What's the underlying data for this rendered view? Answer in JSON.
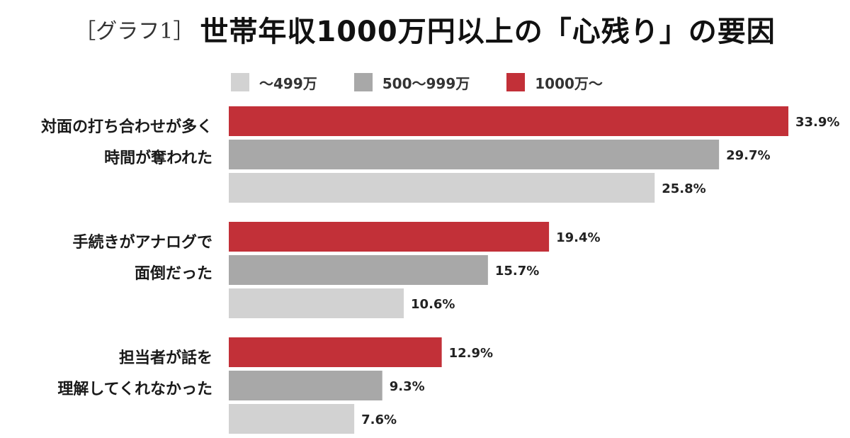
{
  "title": {
    "prefix": "［グラフ1］",
    "main": "世帯年収1000万円以上の「心残り」の要因"
  },
  "colors": {
    "series_low": "#d2d2d2",
    "series_mid": "#a8a8a8",
    "series_high": "#c23038"
  },
  "chart_data": {
    "type": "bar",
    "orientation": "horizontal",
    "title": "［グラフ1］世帯年収1000万円以上の「心残り」の要因",
    "legend_position": "top",
    "grid": false,
    "xlim": [
      0,
      34.5
    ],
    "categories": [
      [
        "対面の打ち合わせが多く",
        "時間が奪われた"
      ],
      [
        "手続きがアナログで",
        "面倒だった"
      ],
      [
        "担当者が話を",
        "理解してくれなかった"
      ]
    ],
    "series": [
      {
        "name": "1000万〜",
        "color": "#c23038",
        "values": [
          33.9,
          19.4,
          12.9
        ],
        "labels": [
          "33.9%",
          "19.4%",
          "12.9%"
        ]
      },
      {
        "name": "500〜999万",
        "color": "#a8a8a8",
        "values": [
          29.7,
          15.7,
          9.3
        ],
        "labels": [
          "29.7%",
          "15.7%",
          "9.3%"
        ]
      },
      {
        "name": "〜499万",
        "color": "#d2d2d2",
        "values": [
          25.8,
          10.6,
          7.6
        ],
        "labels": [
          "25.8%",
          "10.6%",
          "7.6%"
        ]
      }
    ]
  },
  "legend": [
    {
      "label": "〜499万",
      "color": "#d2d2d2"
    },
    {
      "label": "500〜999万",
      "color": "#a8a8a8"
    },
    {
      "label": "1000万〜",
      "color": "#c23038"
    }
  ]
}
